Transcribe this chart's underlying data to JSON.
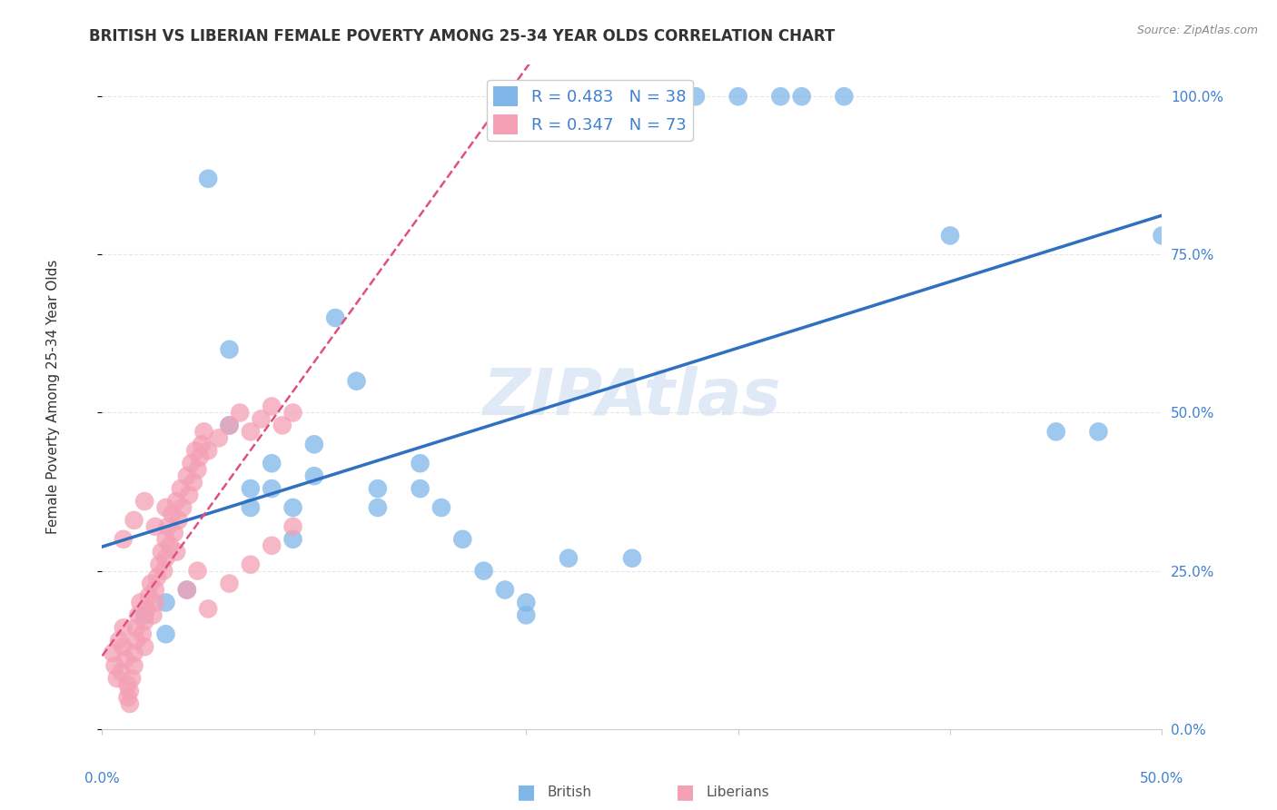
{
  "title": "BRITISH VS LIBERIAN FEMALE POVERTY AMONG 25-34 YEAR OLDS CORRELATION CHART",
  "source": "Source: ZipAtlas.com",
  "ylabel_label": "Female Poverty Among 25-34 Year Olds",
  "xmin": 0.0,
  "xmax": 0.5,
  "ymin": 0.0,
  "ymax": 1.05,
  "british_color": "#7EB6E8",
  "liberian_color": "#F4A0B5",
  "british_line_color": "#3070C0",
  "liberian_line_color": "#E05080",
  "british_R": 0.483,
  "british_N": 38,
  "liberian_R": 0.347,
  "liberian_N": 73,
  "watermark": "ZIPAtlas",
  "background_color": "#ffffff",
  "grid_color": "#e0e0e0",
  "right_axis_color": "#4080D0",
  "british_scatter": [
    [
      0.02,
      0.18
    ],
    [
      0.03,
      0.2
    ],
    [
      0.03,
      0.15
    ],
    [
      0.04,
      0.22
    ],
    [
      0.05,
      0.87
    ],
    [
      0.06,
      0.6
    ],
    [
      0.06,
      0.48
    ],
    [
      0.07,
      0.38
    ],
    [
      0.07,
      0.35
    ],
    [
      0.08,
      0.42
    ],
    [
      0.08,
      0.38
    ],
    [
      0.09,
      0.35
    ],
    [
      0.09,
      0.3
    ],
    [
      0.1,
      0.45
    ],
    [
      0.1,
      0.4
    ],
    [
      0.11,
      0.65
    ],
    [
      0.12,
      0.55
    ],
    [
      0.13,
      0.38
    ],
    [
      0.13,
      0.35
    ],
    [
      0.15,
      0.42
    ],
    [
      0.15,
      0.38
    ],
    [
      0.16,
      0.35
    ],
    [
      0.17,
      0.3
    ],
    [
      0.18,
      0.25
    ],
    [
      0.19,
      0.22
    ],
    [
      0.2,
      0.2
    ],
    [
      0.2,
      0.18
    ],
    [
      0.22,
      0.27
    ],
    [
      0.25,
      0.27
    ],
    [
      0.28,
      1.0
    ],
    [
      0.3,
      1.0
    ],
    [
      0.32,
      1.0
    ],
    [
      0.33,
      1.0
    ],
    [
      0.35,
      1.0
    ],
    [
      0.4,
      0.78
    ],
    [
      0.45,
      0.47
    ],
    [
      0.47,
      0.47
    ],
    [
      0.5,
      0.78
    ]
  ],
  "liberian_scatter": [
    [
      0.005,
      0.12
    ],
    [
      0.006,
      0.1
    ],
    [
      0.007,
      0.08
    ],
    [
      0.008,
      0.14
    ],
    [
      0.009,
      0.09
    ],
    [
      0.01,
      0.16
    ],
    [
      0.01,
      0.13
    ],
    [
      0.011,
      0.11
    ],
    [
      0.012,
      0.07
    ],
    [
      0.012,
      0.05
    ],
    [
      0.013,
      0.06
    ],
    [
      0.013,
      0.04
    ],
    [
      0.014,
      0.08
    ],
    [
      0.015,
      0.1
    ],
    [
      0.015,
      0.12
    ],
    [
      0.016,
      0.14
    ],
    [
      0.016,
      0.16
    ],
    [
      0.017,
      0.18
    ],
    [
      0.018,
      0.2
    ],
    [
      0.019,
      0.15
    ],
    [
      0.02,
      0.17
    ],
    [
      0.02,
      0.13
    ],
    [
      0.021,
      0.19
    ],
    [
      0.022,
      0.21
    ],
    [
      0.023,
      0.23
    ],
    [
      0.024,
      0.18
    ],
    [
      0.025,
      0.22
    ],
    [
      0.025,
      0.2
    ],
    [
      0.026,
      0.24
    ],
    [
      0.027,
      0.26
    ],
    [
      0.028,
      0.28
    ],
    [
      0.029,
      0.25
    ],
    [
      0.03,
      0.3
    ],
    [
      0.03,
      0.27
    ],
    [
      0.031,
      0.32
    ],
    [
      0.032,
      0.29
    ],
    [
      0.033,
      0.34
    ],
    [
      0.034,
      0.31
    ],
    [
      0.035,
      0.36
    ],
    [
      0.036,
      0.33
    ],
    [
      0.037,
      0.38
    ],
    [
      0.038,
      0.35
    ],
    [
      0.04,
      0.4
    ],
    [
      0.041,
      0.37
    ],
    [
      0.042,
      0.42
    ],
    [
      0.043,
      0.39
    ],
    [
      0.044,
      0.44
    ],
    [
      0.045,
      0.41
    ],
    [
      0.046,
      0.43
    ],
    [
      0.047,
      0.45
    ],
    [
      0.048,
      0.47
    ],
    [
      0.05,
      0.44
    ],
    [
      0.055,
      0.46
    ],
    [
      0.06,
      0.48
    ],
    [
      0.065,
      0.5
    ],
    [
      0.07,
      0.47
    ],
    [
      0.075,
      0.49
    ],
    [
      0.08,
      0.51
    ],
    [
      0.085,
      0.48
    ],
    [
      0.09,
      0.5
    ],
    [
      0.01,
      0.3
    ],
    [
      0.015,
      0.33
    ],
    [
      0.02,
      0.36
    ],
    [
      0.025,
      0.32
    ],
    [
      0.03,
      0.35
    ],
    [
      0.035,
      0.28
    ],
    [
      0.04,
      0.22
    ],
    [
      0.045,
      0.25
    ],
    [
      0.05,
      0.19
    ],
    [
      0.06,
      0.23
    ],
    [
      0.07,
      0.26
    ],
    [
      0.08,
      0.29
    ],
    [
      0.09,
      0.32
    ]
  ]
}
